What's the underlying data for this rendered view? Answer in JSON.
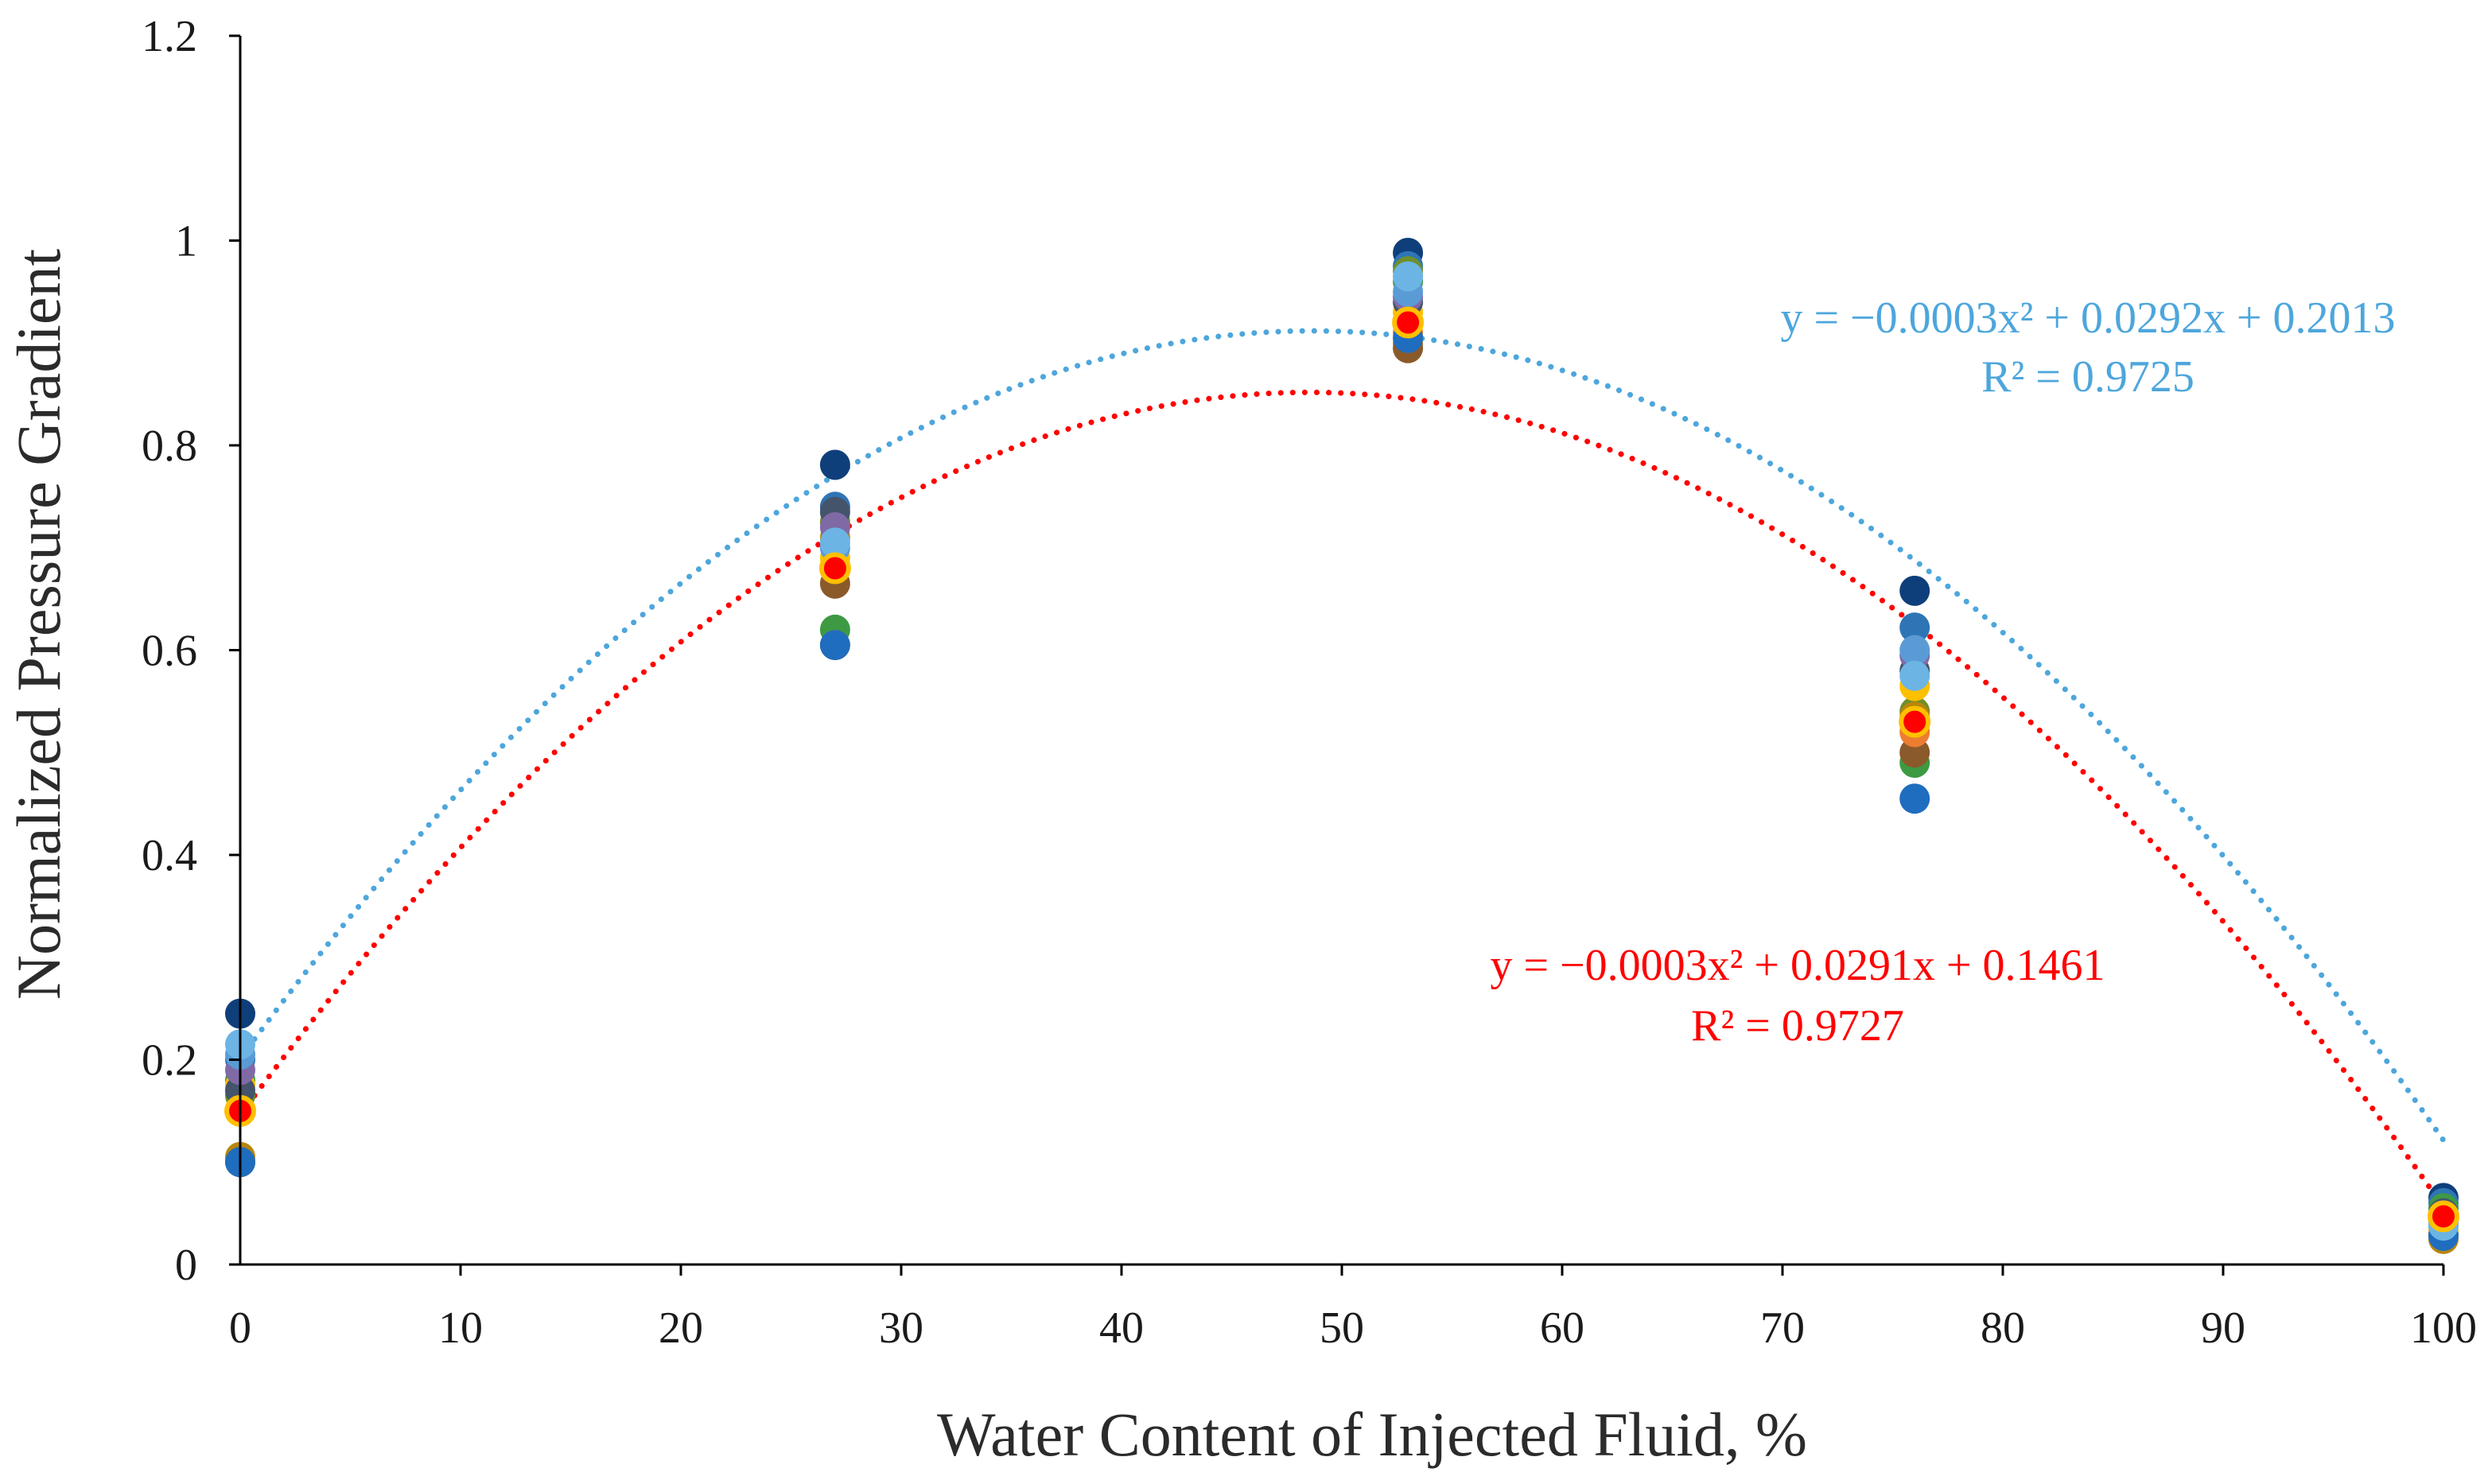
{
  "chart_data": {
    "type": "scatter",
    "title": "",
    "xlabel": "Water Content of Injected Fluid, %",
    "ylabel": "Normalized Pressure Gradient",
    "xlim": [
      0,
      100
    ],
    "ylim": [
      0,
      1.2
    ],
    "grid": false,
    "legend": "none",
    "x_ticks": [
      {
        "value": 0,
        "label": "0"
      },
      {
        "value": 10,
        "label": "10"
      },
      {
        "value": 20,
        "label": "20"
      },
      {
        "value": 30,
        "label": "30"
      },
      {
        "value": 40,
        "label": "40"
      },
      {
        "value": 50,
        "label": "50"
      },
      {
        "value": 60,
        "label": "60"
      },
      {
        "value": 70,
        "label": "70"
      },
      {
        "value": 80,
        "label": "80"
      },
      {
        "value": 90,
        "label": "90"
      },
      {
        "value": 100,
        "label": "100"
      }
    ],
    "y_ticks": [
      {
        "value": 0,
        "label": "0"
      },
      {
        "value": 0.2,
        "label": "0.2"
      },
      {
        "value": 0.4,
        "label": "0.4"
      },
      {
        "value": 0.6,
        "label": "0.6"
      },
      {
        "value": 0.8,
        "label": "0.8"
      },
      {
        "value": 1.0,
        "label": "1"
      },
      {
        "value": 1.2,
        "label": "1.2"
      }
    ],
    "series": [
      {
        "name": "dark-navy",
        "color": "#0f3f7a",
        "points": [
          [
            0,
            0.245
          ],
          [
            27,
            0.781
          ],
          [
            53,
            0.988
          ],
          [
            76,
            0.658
          ],
          [
            100,
            0.065
          ]
        ]
      },
      {
        "name": "blue-1",
        "color": "#2e75b6",
        "points": [
          [
            0,
            0.2
          ],
          [
            27,
            0.74
          ],
          [
            53,
            0.975
          ],
          [
            76,
            0.622
          ],
          [
            100,
            0.06
          ]
        ]
      },
      {
        "name": "green",
        "color": "#3d9a43",
        "points": [
          [
            0,
            0.18
          ],
          [
            27,
            0.62
          ],
          [
            53,
            0.96
          ],
          [
            76,
            0.49
          ],
          [
            100,
            0.055
          ]
        ]
      },
      {
        "name": "olive",
        "color": "#6f8f2a",
        "points": [
          [
            0,
            0.165
          ],
          [
            27,
            0.725
          ],
          [
            53,
            0.97
          ],
          [
            76,
            0.54
          ],
          [
            100,
            0.045
          ]
        ]
      },
      {
        "name": "mustard",
        "color": "#b8860b",
        "points": [
          [
            0,
            0.105
          ],
          [
            27,
            0.71
          ],
          [
            53,
            0.9
          ],
          [
            76,
            0.535
          ],
          [
            100,
            0.025
          ]
        ]
      },
      {
        "name": "brown",
        "color": "#8b5a2b",
        "points": [
          [
            0,
            0.1
          ],
          [
            27,
            0.665
          ],
          [
            53,
            0.895
          ],
          [
            76,
            0.5
          ],
          [
            100,
            0.03
          ]
        ]
      },
      {
        "name": "orange",
        "color": "#ed7d31",
        "points": [
          [
            0,
            0.15
          ],
          [
            27,
            0.605
          ],
          [
            53,
            0.91
          ],
          [
            76,
            0.52
          ],
          [
            100,
            0.04
          ]
        ]
      },
      {
        "name": "gold",
        "color": "#ffc000",
        "points": [
          [
            0,
            0.175
          ],
          [
            27,
            0.69
          ],
          [
            53,
            0.93
          ],
          [
            76,
            0.565
          ],
          [
            100,
            0.035
          ]
        ]
      },
      {
        "name": "slate",
        "color": "#44546a",
        "points": [
          [
            0,
            0.17
          ],
          [
            27,
            0.735
          ],
          [
            53,
            0.94
          ],
          [
            76,
            0.58
          ],
          [
            100,
            0.05
          ]
        ]
      },
      {
        "name": "purple",
        "color": "#7f6aa6",
        "points": [
          [
            0,
            0.19
          ],
          [
            27,
            0.72
          ],
          [
            53,
            0.945
          ],
          [
            76,
            0.595
          ],
          [
            100,
            0.048
          ]
        ]
      },
      {
        "name": "steel",
        "color": "#5b9bd5",
        "points": [
          [
            0,
            0.205
          ],
          [
            27,
            0.7
          ],
          [
            53,
            0.95
          ],
          [
            76,
            0.6
          ],
          [
            100,
            0.04
          ]
        ]
      },
      {
        "name": "mid-blue",
        "color": "#1f6dbf",
        "points": [
          [
            0,
            0.1
          ],
          [
            27,
            0.605
          ],
          [
            53,
            0.905
          ],
          [
            76,
            0.455
          ],
          [
            100,
            0.028
          ]
        ]
      },
      {
        "name": "light-blue",
        "color": "#6cb4e4",
        "points": [
          [
            0,
            0.215
          ],
          [
            27,
            0.705
          ],
          [
            53,
            0.965
          ],
          [
            76,
            0.575
          ],
          [
            100,
            0.038
          ]
        ]
      },
      {
        "name": "average",
        "color": "#ff0000",
        "points": [
          [
            0,
            0.15
          ],
          [
            27,
            0.68
          ],
          [
            53,
            0.92
          ],
          [
            76,
            0.53
          ],
          [
            100,
            0.047
          ]
        ]
      }
    ],
    "trendlines": [
      {
        "name": "upper-fit",
        "color": "#4da6dc",
        "a": -0.0003,
        "b": 0.0292,
        "c": 0.2013,
        "equation": "y = −0.0003x² + 0.0292x + 0.2013",
        "r2": "R² = 0.9725"
      },
      {
        "name": "average-fit",
        "color": "#ff0000",
        "a": -0.0003,
        "b": 0.0291,
        "c": 0.1461,
        "equation": "y = −0.0003x² + 0.0291x + 0.1461",
        "r2": "R² = 0.9727"
      }
    ]
  }
}
